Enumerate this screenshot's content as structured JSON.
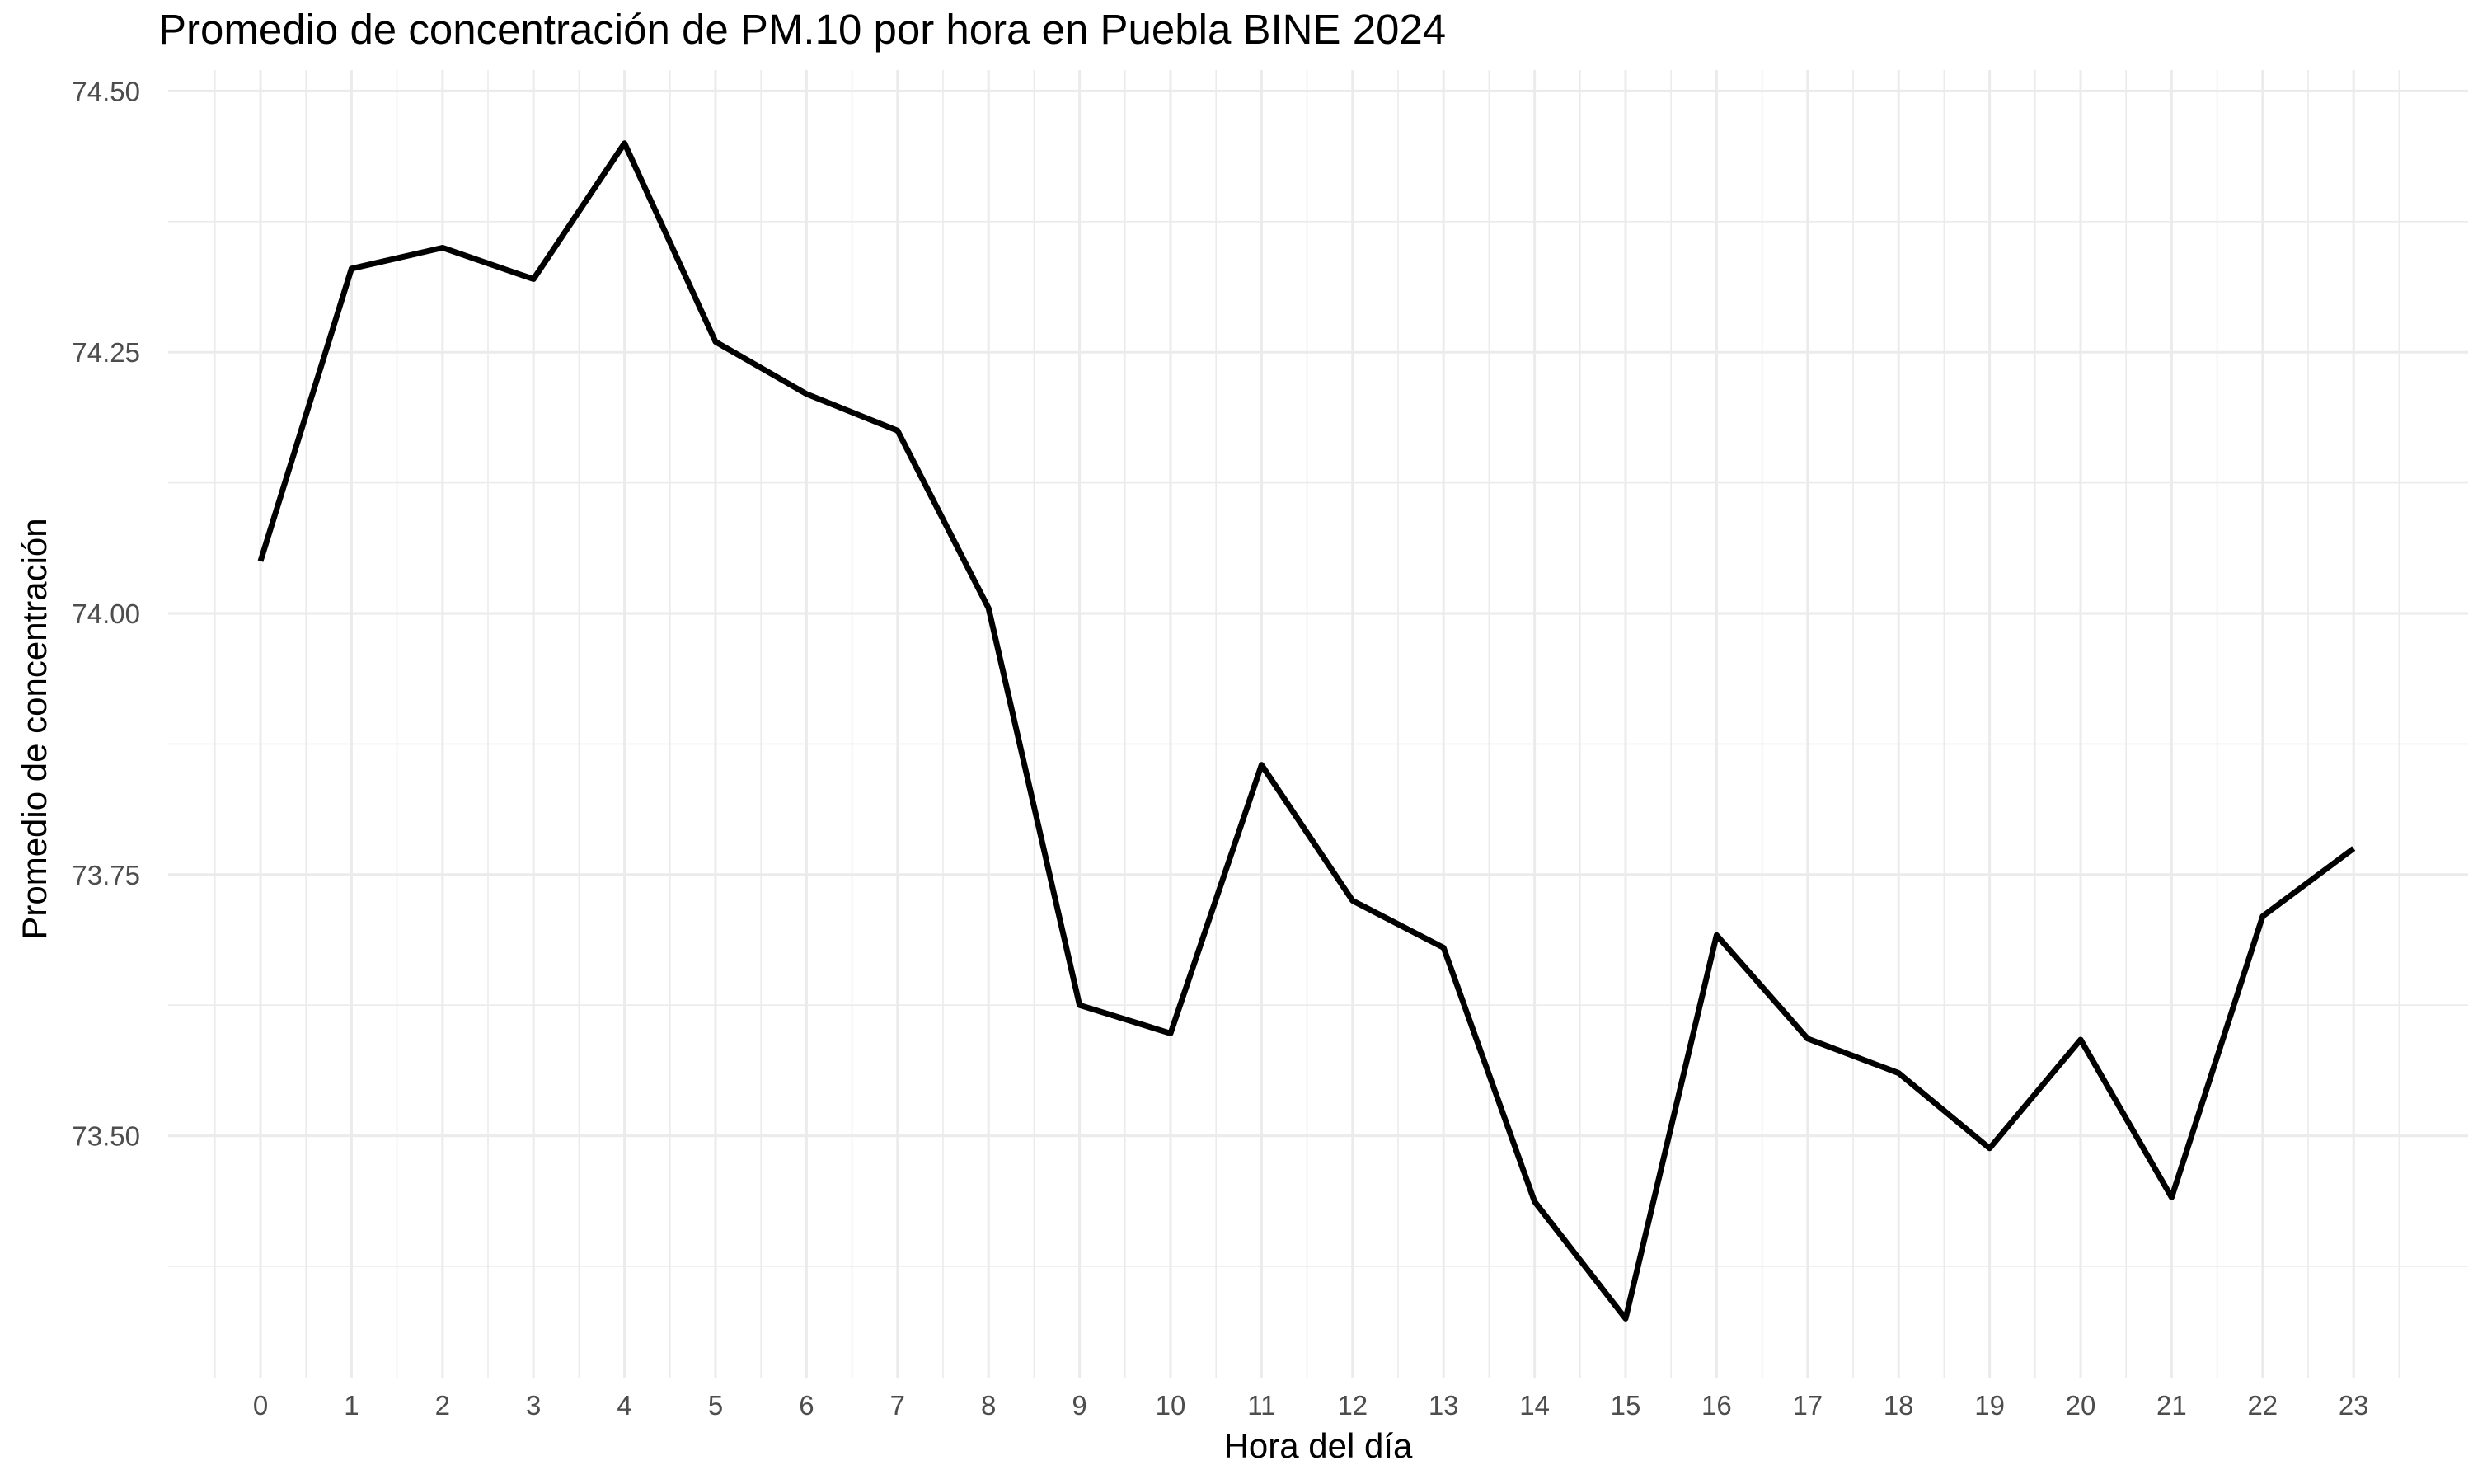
{
  "chart_data": {
    "type": "line",
    "title": "Promedio de concentración de PM.10 por hora en Puebla BINE 2024",
    "xlabel": "Hora del día",
    "ylabel": "Promedio de concentración",
    "x": [
      0,
      1,
      2,
      3,
      4,
      5,
      6,
      7,
      8,
      9,
      10,
      11,
      12,
      13,
      14,
      15,
      16,
      17,
      18,
      19,
      20,
      21,
      22,
      23
    ],
    "series": [
      {
        "values": [
          74.05,
          74.33,
          74.35,
          74.32,
          74.45,
          74.26,
          74.21,
          74.175,
          74.005,
          73.625,
          73.598,
          73.855,
          73.725,
          73.68,
          73.437,
          73.325,
          73.692,
          73.593,
          73.56,
          73.488,
          73.592,
          73.441,
          73.71,
          73.775
        ]
      }
    ],
    "x_ticks": [
      "0",
      "1",
      "2",
      "3",
      "4",
      "5",
      "6",
      "7",
      "8",
      "9",
      "10",
      "11",
      "12",
      "13",
      "14",
      "15",
      "16",
      "17",
      "18",
      "19",
      "20",
      "21",
      "22",
      "23"
    ],
    "y_ticks": [
      73.5,
      73.75,
      74.0,
      74.25,
      74.5
    ],
    "y_tick_labels": [
      "73.50",
      "73.75",
      "74.00",
      "74.25",
      "74.50"
    ],
    "xlim": [
      -1,
      24
    ],
    "ylim": [
      73.3,
      74.5
    ],
    "grid": true,
    "legend": "none",
    "colors": {
      "line": "#000000",
      "grid": "#ebebeb",
      "tick_text": "#4d4d4d",
      "background": "#ffffff"
    }
  }
}
